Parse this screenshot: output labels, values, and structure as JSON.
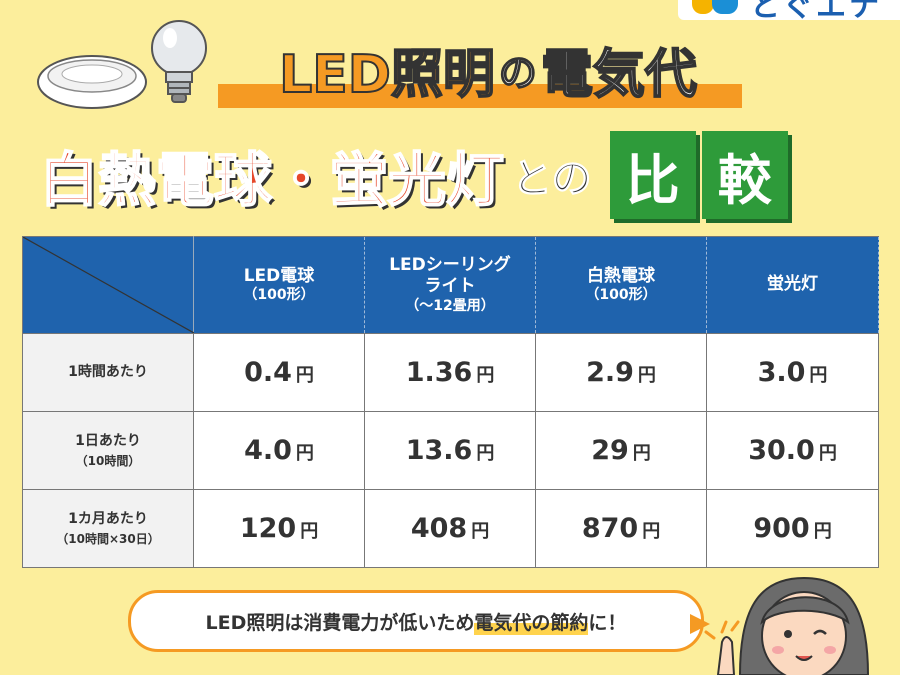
{
  "logo": {
    "word": "とぐエナ"
  },
  "title": {
    "line1_led": "LED照明",
    "line1_no": "の",
    "line1_rest": "電気代",
    "line2_main": "白熱電球・蛍光灯",
    "line2_to": "との",
    "line2_box1": "比",
    "line2_box2": "較"
  },
  "table": {
    "columns": [
      {
        "name": "LED電球",
        "sub": "（100形）"
      },
      {
        "name": "LEDシーリング",
        "name2": "ライト",
        "sub": "（～12畳用）"
      },
      {
        "name": "白熱電球",
        "sub": "（100形）"
      },
      {
        "name": "蛍光灯",
        "sub": ""
      }
    ],
    "unit": "円",
    "rows": [
      {
        "label": "1時間あたり",
        "sub": "",
        "values": [
          "0.4",
          "1.36",
          "2.9",
          "3.0"
        ]
      },
      {
        "label": "1日あたり",
        "sub": "（10時間）",
        "values": [
          "4.0",
          "13.6",
          "29",
          "30.0"
        ]
      },
      {
        "label": "1カ月あたり",
        "sub": "（10時間×30日）",
        "values": [
          "120",
          "408",
          "870",
          "900"
        ]
      }
    ]
  },
  "bubble": {
    "pre": "LED照明は消費電力が低いため",
    "highlight": "電気代の節約",
    "post": "に！"
  },
  "colors": {
    "background": "#fcee9c",
    "orange": "#f59a23",
    "blue": "#1f63ad",
    "red": "#e6472a",
    "green": "#2e9b3a"
  }
}
